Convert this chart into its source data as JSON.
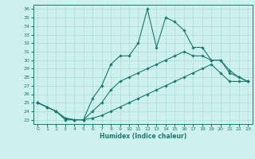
{
  "xlabel": "Humidex (Indice chaleur)",
  "xlim": [
    -0.5,
    23.5
  ],
  "ylim": [
    22.5,
    36.5
  ],
  "xticks": [
    0,
    1,
    2,
    3,
    4,
    5,
    6,
    7,
    8,
    9,
    10,
    11,
    12,
    13,
    14,
    15,
    16,
    17,
    18,
    19,
    20,
    21,
    22,
    23
  ],
  "yticks": [
    23,
    24,
    25,
    26,
    27,
    28,
    29,
    30,
    31,
    32,
    33,
    34,
    35,
    36
  ],
  "line_color": "#1a7a6e",
  "bg_color": "#cef0ee",
  "grid_color": "#aaddd8",
  "series": [
    {
      "x": [
        0,
        1,
        2,
        3,
        4,
        5,
        6,
        7,
        8,
        9,
        10,
        11,
        12,
        13,
        14,
        15,
        16,
        17,
        18,
        19,
        20,
        21,
        22,
        23
      ],
      "y": [
        25.0,
        24.5,
        24.0,
        23.0,
        23.0,
        23.0,
        25.5,
        27.0,
        29.5,
        30.5,
        30.5,
        32.0,
        36.0,
        31.5,
        35.0,
        34.5,
        33.5,
        31.5,
        31.5,
        30.0,
        30.0,
        28.5,
        28.0,
        27.5
      ]
    },
    {
      "x": [
        0,
        1,
        2,
        3,
        4,
        5,
        6,
        7,
        8,
        9,
        10,
        11,
        12,
        13,
        14,
        15,
        16,
        17,
        18,
        19,
        20,
        21,
        22,
        23
      ],
      "y": [
        25.0,
        24.5,
        24.0,
        23.2,
        23.0,
        23.0,
        24.0,
        25.0,
        26.5,
        27.5,
        28.0,
        28.5,
        29.0,
        29.5,
        30.0,
        30.5,
        31.0,
        30.5,
        30.5,
        30.0,
        30.0,
        28.8,
        28.0,
        27.5
      ]
    },
    {
      "x": [
        0,
        1,
        2,
        3,
        4,
        5,
        6,
        7,
        8,
        9,
        10,
        11,
        12,
        13,
        14,
        15,
        16,
        17,
        18,
        19,
        20,
        21,
        22,
        23
      ],
      "y": [
        25.0,
        24.5,
        24.0,
        23.2,
        23.0,
        23.0,
        23.2,
        23.5,
        24.0,
        24.5,
        25.0,
        25.5,
        26.0,
        26.5,
        27.0,
        27.5,
        28.0,
        28.5,
        29.0,
        29.5,
        28.5,
        27.5,
        27.5,
        27.5
      ]
    }
  ]
}
